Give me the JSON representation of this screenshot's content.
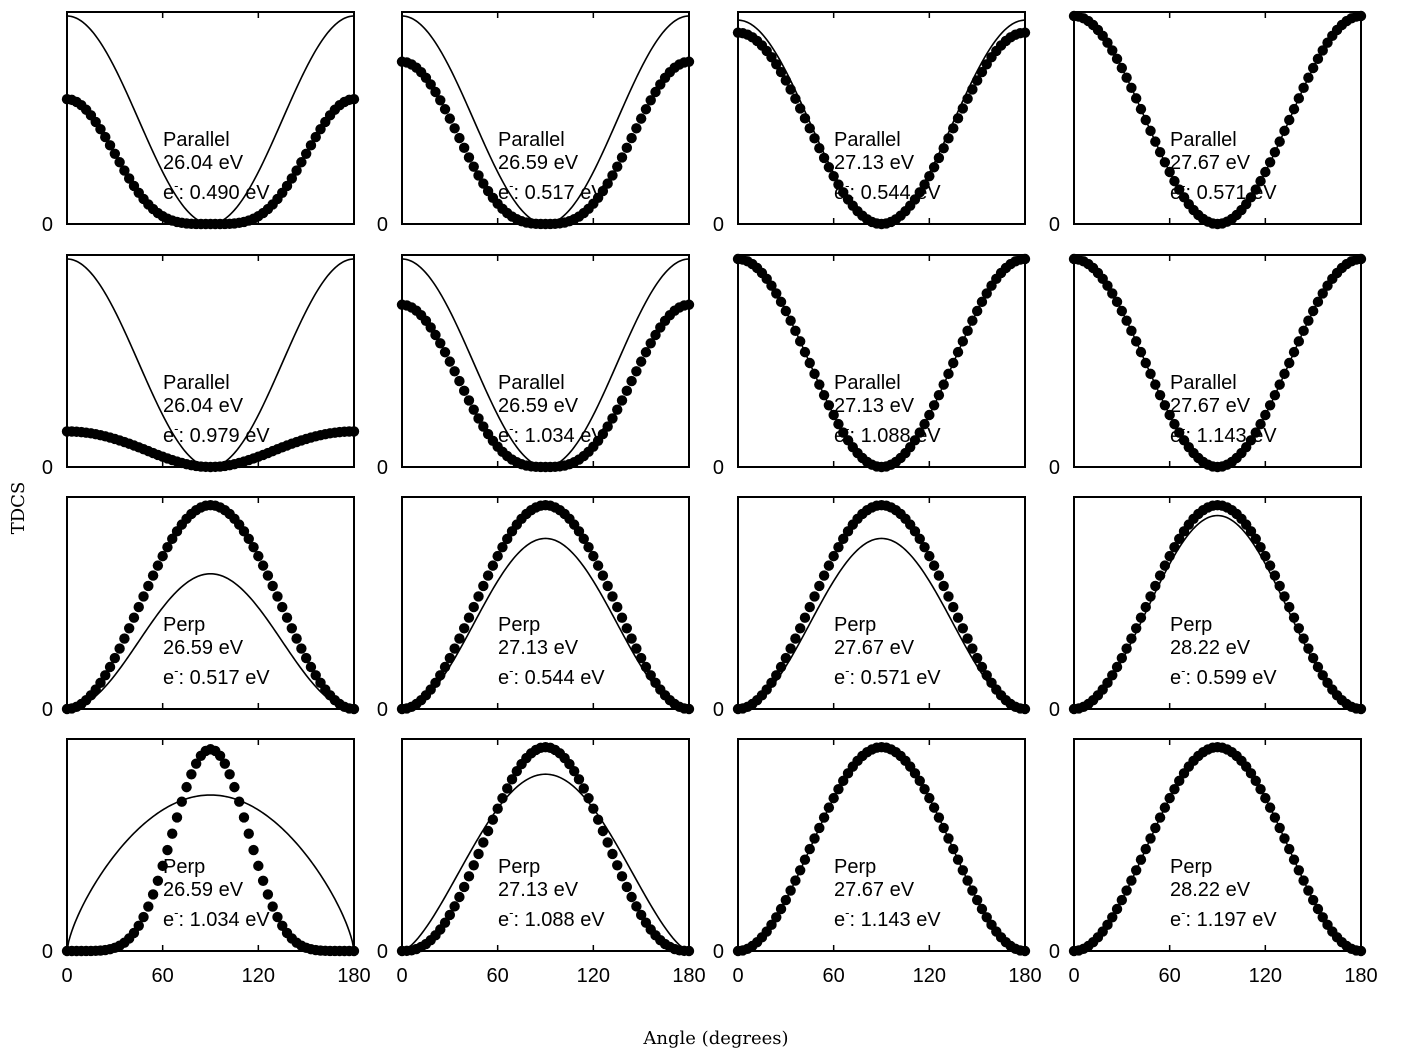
{
  "figure": {
    "ylabel": "TDCS",
    "xlabel": "Angle (degrees)",
    "x_ticks": [
      "0",
      "60",
      "120",
      "180"
    ],
    "y_zero_label": "0",
    "electron_prefix": "e",
    "electron_superscript": "-",
    "colors": {
      "line": "#000000",
      "points": "#000000",
      "background": "#ffffff"
    }
  },
  "chart_data": [
    {
      "type": "line",
      "panel_row": 1,
      "panel_col": 1,
      "geometry": "Parallel",
      "photon_energy": "26.04 eV",
      "electron_energy": "0.490 eV",
      "x_range": [
        0,
        180
      ],
      "y_range": [
        0,
        1
      ],
      "series": [
        {
          "name": "lines",
          "style": "line",
          "shape": "parallel",
          "peak": 1.0,
          "exponent": 2
        },
        {
          "name": "points",
          "style": "points",
          "shape": "parallel",
          "peak": 0.6,
          "exponent": 4
        }
      ]
    },
    {
      "type": "line",
      "panel_row": 1,
      "panel_col": 2,
      "geometry": "Parallel",
      "photon_energy": "26.59 eV",
      "electron_energy": "0.517 eV",
      "x_range": [
        0,
        180
      ],
      "y_range": [
        0,
        1
      ],
      "series": [
        {
          "name": "lines",
          "style": "line",
          "shape": "parallel",
          "peak": 1.0,
          "exponent": 2
        },
        {
          "name": "points",
          "style": "points",
          "shape": "parallel",
          "peak": 0.78,
          "exponent": 3
        }
      ]
    },
    {
      "type": "line",
      "panel_row": 1,
      "panel_col": 3,
      "geometry": "Parallel",
      "photon_energy": "27.13 eV",
      "electron_energy": "0.544 eV",
      "x_range": [
        0,
        180
      ],
      "y_range": [
        0,
        1
      ],
      "series": [
        {
          "name": "lines",
          "style": "line",
          "shape": "parallel",
          "peak": 0.98,
          "exponent": 2
        },
        {
          "name": "points",
          "style": "points",
          "shape": "parallel",
          "peak": 0.92,
          "exponent": 2
        }
      ]
    },
    {
      "type": "line",
      "panel_row": 1,
      "panel_col": 4,
      "geometry": "Parallel",
      "photon_energy": "27.67 eV",
      "electron_energy": "0.571 eV",
      "x_range": [
        0,
        180
      ],
      "y_range": [
        0,
        1
      ],
      "series": [
        {
          "name": "lines",
          "style": "line",
          "shape": "parallel",
          "peak": 1.0,
          "exponent": 2
        },
        {
          "name": "points",
          "style": "points",
          "shape": "parallel",
          "peak": 1.0,
          "exponent": 2
        }
      ]
    },
    {
      "type": "line",
      "panel_row": 2,
      "panel_col": 1,
      "geometry": "Parallel",
      "photon_energy": "26.04 eV",
      "electron_energy": "0.979 eV",
      "x_range": [
        0,
        180
      ],
      "y_range": [
        0,
        1
      ],
      "series": [
        {
          "name": "lines",
          "style": "line",
          "shape": "parallel",
          "peak": 1.0,
          "exponent": 2
        },
        {
          "name": "points",
          "style": "points",
          "shape": "parallel_flat",
          "peak": 0.18,
          "exponent": 2
        }
      ]
    },
    {
      "type": "line",
      "panel_row": 2,
      "panel_col": 2,
      "geometry": "Parallel",
      "photon_energy": "26.59 eV",
      "electron_energy": "1.034 eV",
      "x_range": [
        0,
        180
      ],
      "y_range": [
        0,
        1
      ],
      "series": [
        {
          "name": "lines",
          "style": "line",
          "shape": "parallel",
          "peak": 1.0,
          "exponent": 2
        },
        {
          "name": "points",
          "style": "points",
          "shape": "parallel",
          "peak": 0.78,
          "exponent": 3
        }
      ]
    },
    {
      "type": "line",
      "panel_row": 2,
      "panel_col": 3,
      "geometry": "Parallel",
      "photon_energy": "27.13 eV",
      "electron_energy": "1.088 eV",
      "x_range": [
        0,
        180
      ],
      "y_range": [
        0,
        1
      ],
      "series": [
        {
          "name": "lines",
          "style": "line",
          "shape": "parallel",
          "peak": 1.0,
          "exponent": 2
        },
        {
          "name": "points",
          "style": "points",
          "shape": "parallel",
          "peak": 1.0,
          "exponent": 2
        }
      ]
    },
    {
      "type": "line",
      "panel_row": 2,
      "panel_col": 4,
      "geometry": "Parallel",
      "photon_energy": "27.67 eV",
      "electron_energy": "1.143 eV",
      "x_range": [
        0,
        180
      ],
      "y_range": [
        0,
        1
      ],
      "series": [
        {
          "name": "lines",
          "style": "line",
          "shape": "parallel",
          "peak": 1.0,
          "exponent": 2
        },
        {
          "name": "points",
          "style": "points",
          "shape": "parallel",
          "peak": 1.0,
          "exponent": 2
        }
      ]
    },
    {
      "type": "line",
      "panel_row": 3,
      "panel_col": 1,
      "geometry": "Perp",
      "photon_energy": "26.59 eV",
      "electron_energy": "0.517 eV",
      "x_range": [
        0,
        180
      ],
      "y_range": [
        0,
        1
      ],
      "series": [
        {
          "name": "lines",
          "style": "line",
          "shape": "perp",
          "peak": 0.65,
          "exponent": 2
        },
        {
          "name": "points",
          "style": "points",
          "shape": "perp",
          "peak": 0.98,
          "exponent": 2
        }
      ]
    },
    {
      "type": "line",
      "panel_row": 3,
      "panel_col": 2,
      "geometry": "Perp",
      "photon_energy": "27.13 eV",
      "electron_energy": "0.544 eV",
      "x_range": [
        0,
        180
      ],
      "y_range": [
        0,
        1
      ],
      "series": [
        {
          "name": "lines",
          "style": "line",
          "shape": "perp",
          "peak": 0.82,
          "exponent": 2
        },
        {
          "name": "points",
          "style": "points",
          "shape": "perp",
          "peak": 0.98,
          "exponent": 2
        }
      ]
    },
    {
      "type": "line",
      "panel_row": 3,
      "panel_col": 3,
      "geometry": "Perp",
      "photon_energy": "27.67 eV",
      "electron_energy": "0.571 eV",
      "x_range": [
        0,
        180
      ],
      "y_range": [
        0,
        1
      ],
      "series": [
        {
          "name": "lines",
          "style": "line",
          "shape": "perp",
          "peak": 0.82,
          "exponent": 2
        },
        {
          "name": "points",
          "style": "points",
          "shape": "perp",
          "peak": 0.98,
          "exponent": 2
        }
      ]
    },
    {
      "type": "line",
      "panel_row": 3,
      "panel_col": 4,
      "geometry": "Perp",
      "photon_energy": "28.22 eV",
      "electron_energy": "0.599 eV",
      "x_range": [
        0,
        180
      ],
      "y_range": [
        0,
        1
      ],
      "series": [
        {
          "name": "lines",
          "style": "line",
          "shape": "perp",
          "peak": 0.93,
          "exponent": 2
        },
        {
          "name": "points",
          "style": "points",
          "shape": "perp",
          "peak": 0.98,
          "exponent": 2
        }
      ]
    },
    {
      "type": "line",
      "panel_row": 4,
      "panel_col": 1,
      "geometry": "Perp",
      "photon_energy": "26.59 eV",
      "electron_energy": "1.034 eV",
      "x_range": [
        0,
        180
      ],
      "y_range": [
        0,
        1
      ],
      "series": [
        {
          "name": "lines",
          "style": "line",
          "shape": "perp",
          "peak": 0.75,
          "exponent": 0.7
        },
        {
          "name": "points",
          "style": "points",
          "shape": "perp",
          "peak": 0.97,
          "exponent": 6
        }
      ]
    },
    {
      "type": "line",
      "panel_row": 4,
      "panel_col": 2,
      "geometry": "Perp",
      "photon_energy": "27.13 eV",
      "electron_energy": "1.088 eV",
      "x_range": [
        0,
        180
      ],
      "y_range": [
        0,
        1
      ],
      "series": [
        {
          "name": "lines",
          "style": "line",
          "shape": "perp",
          "peak": 0.85,
          "exponent": 1.5
        },
        {
          "name": "points",
          "style": "points",
          "shape": "perp",
          "peak": 0.98,
          "exponent": 2.5
        }
      ]
    },
    {
      "type": "line",
      "panel_row": 4,
      "panel_col": 3,
      "geometry": "Perp",
      "photon_energy": "27.67 eV",
      "electron_energy": "1.143 eV",
      "x_range": [
        0,
        180
      ],
      "y_range": [
        0,
        1
      ],
      "series": [
        {
          "name": "lines",
          "style": "line",
          "shape": "perp",
          "peak": 0.98,
          "exponent": 2
        },
        {
          "name": "points",
          "style": "points",
          "shape": "perp",
          "peak": 0.98,
          "exponent": 2
        }
      ]
    },
    {
      "type": "line",
      "panel_row": 4,
      "panel_col": 4,
      "geometry": "Perp",
      "photon_energy": "28.22 eV",
      "electron_energy": "1.197 eV",
      "x_range": [
        0,
        180
      ],
      "y_range": [
        0,
        1
      ],
      "series": [
        {
          "name": "lines",
          "style": "line",
          "shape": "perp",
          "peak": 0.98,
          "exponent": 2
        },
        {
          "name": "points",
          "style": "points",
          "shape": "perp",
          "peak": 0.98,
          "exponent": 2
        }
      ]
    }
  ]
}
